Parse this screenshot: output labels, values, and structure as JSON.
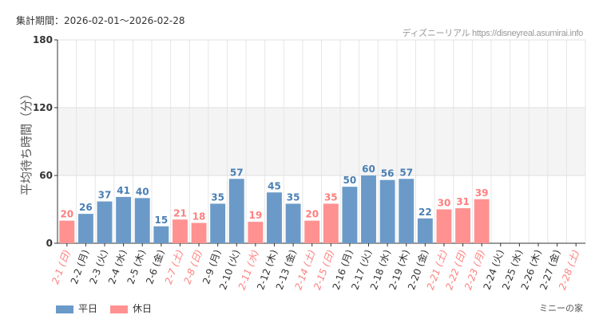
{
  "header": {
    "period": "集計期間：2026-02-01～2026-02-28",
    "credit": "ディズニーリアル https://disneyreal.asumirai.info"
  },
  "footer": {
    "attraction": "ミニーの家"
  },
  "colors": {
    "weekday": "#6b9ac9",
    "holiday": "#ff9191",
    "weekday_text": "#333333",
    "holiday_text": "#ff7f7f",
    "band": "#f4f4f4"
  },
  "chart_data": {
    "type": "bar",
    "title": "",
    "ylabel": "平均待ち時間（分）",
    "xlabel": "",
    "ylim": [
      0,
      180
    ],
    "yticks": [
      0,
      60,
      120,
      180
    ],
    "grid": true,
    "shaded_band": [
      60,
      120
    ],
    "legend_position": "bottom-left",
    "categories": [
      "2-1 (日)",
      "2-2 (月)",
      "2-3 (火)",
      "2-4 (水)",
      "2-5 (木)",
      "2-6 (金)",
      "2-7 (土)",
      "2-8 (日)",
      "2-9 (月)",
      "2-10 (火)",
      "2-11 (水)",
      "2-12 (木)",
      "2-13 (金)",
      "2-14 (土)",
      "2-15 (日)",
      "2-16 (月)",
      "2-17 (火)",
      "2-18 (水)",
      "2-19 (木)",
      "2-20 (金)",
      "2-21 (土)",
      "2-22 (日)",
      "2-23 (月)",
      "2-24 (火)",
      "2-25 (水)",
      "2-26 (木)",
      "2-27 (金)",
      "2-28 (土)"
    ],
    "values": [
      20,
      26,
      37,
      41,
      40,
      15,
      21,
      18,
      35,
      57,
      19,
      45,
      35,
      20,
      35,
      50,
      60,
      56,
      57,
      22,
      30,
      31,
      39,
      null,
      null,
      null,
      null,
      null
    ],
    "holiday": [
      true,
      false,
      false,
      false,
      false,
      false,
      true,
      true,
      false,
      false,
      true,
      false,
      false,
      true,
      true,
      false,
      false,
      false,
      false,
      false,
      true,
      true,
      true,
      false,
      false,
      false,
      false,
      true
    ],
    "series": [
      {
        "name": "平日"
      },
      {
        "name": "休日"
      }
    ]
  }
}
